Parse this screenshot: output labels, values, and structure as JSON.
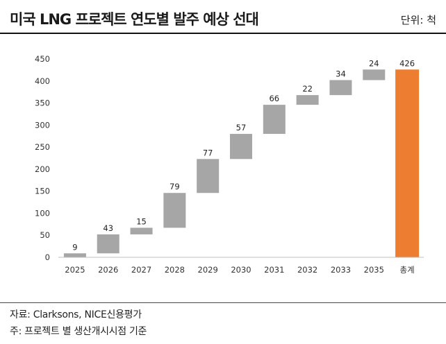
{
  "header": {
    "title": "미국 LNG 프로젝트 연도별 발주 예상 선대",
    "unit": "단위: 척"
  },
  "footer": {
    "source": "자료: Clarksons, NICE신용평가",
    "note": "주: 프로젝트 별 생산개시시점 기준"
  },
  "colors": {
    "increment": "#a6a6a6",
    "total": "#ed7d31",
    "axis": "#bfbfbf"
  },
  "chart_data": {
    "type": "bar",
    "subtype": "waterfall",
    "title": "미국 LNG 프로젝트 연도별 발주 예상 선대",
    "xlabel": "",
    "ylabel": "",
    "ylim": [
      0,
      450
    ],
    "yticks": [
      0,
      50,
      100,
      150,
      200,
      250,
      300,
      350,
      400,
      450
    ],
    "grid": false,
    "categories": [
      "2025",
      "2026",
      "2027",
      "2028",
      "2029",
      "2030",
      "2031",
      "2032",
      "2033",
      "2035",
      "총계"
    ],
    "values": [
      9,
      43,
      15,
      79,
      77,
      57,
      66,
      22,
      34,
      24,
      426
    ],
    "is_total": [
      false,
      false,
      false,
      false,
      false,
      false,
      false,
      false,
      false,
      false,
      true
    ]
  }
}
